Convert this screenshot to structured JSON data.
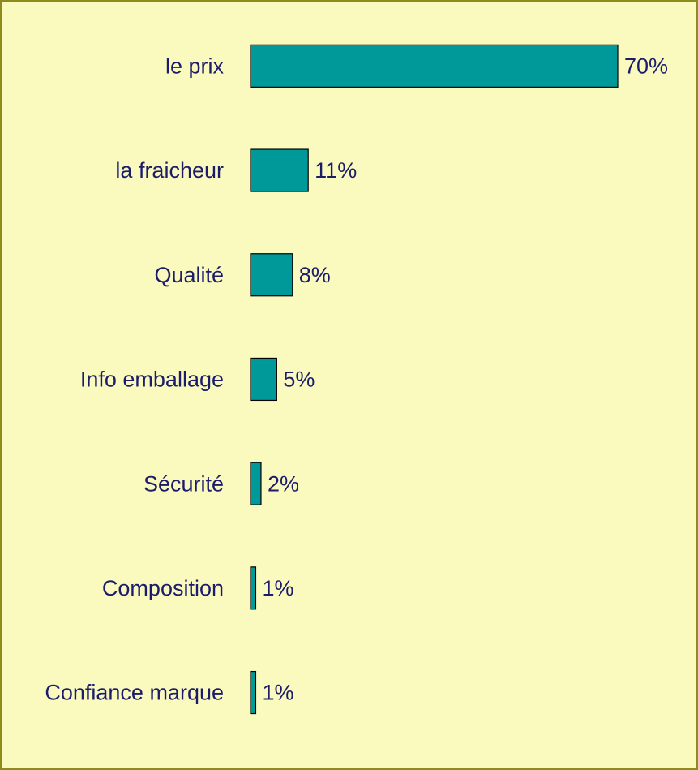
{
  "chart_data": {
    "type": "bar",
    "orientation": "horizontal",
    "categories": [
      "le prix",
      "la fraicheur",
      "Qualité",
      "Info emballage",
      "Sécurité",
      "Composition",
      "Confiance marque"
    ],
    "values": [
      70,
      11,
      8,
      5,
      2,
      1,
      1
    ],
    "value_labels": [
      "70%",
      "11%",
      "8%",
      "5%",
      "2%",
      "1%",
      "1%"
    ],
    "color": "#009999"
  }
}
